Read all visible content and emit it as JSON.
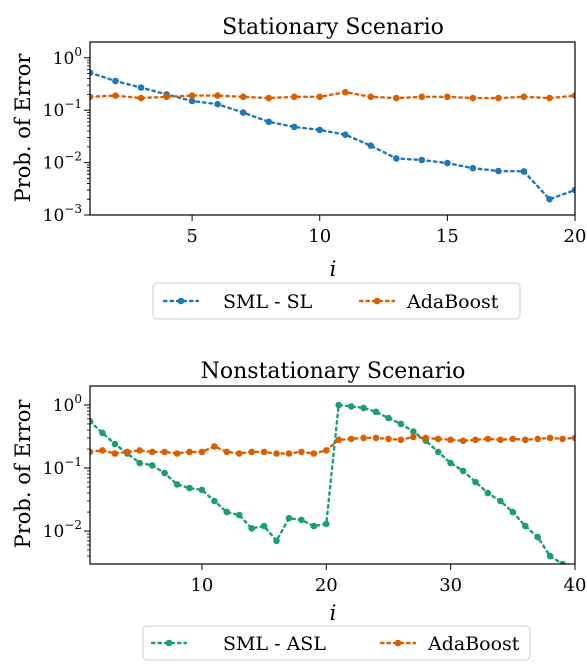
{
  "chart_data": [
    {
      "type": "line",
      "title": "Stationary Scenario",
      "xlabel": "i",
      "ylabel": "Prob. of Error",
      "xlim": [
        1,
        20
      ],
      "ylim": [
        0.001,
        2
      ],
      "yscale": "log",
      "grid": false,
      "legend_position": "bottom-center",
      "x_ticks": [
        "5",
        "10",
        "15",
        "20"
      ],
      "y_ticks": [
        "10^0",
        "10^-1",
        "10^-2",
        "10^-3"
      ],
      "series": [
        {
          "name": "SML - SL",
          "color": "#1f77b4",
          "x": [
            1,
            2,
            3,
            4,
            5,
            6,
            7,
            8,
            9,
            10,
            11,
            12,
            13,
            14,
            15,
            16,
            17,
            18,
            19,
            20
          ],
          "y": [
            0.52,
            0.36,
            0.27,
            0.2,
            0.15,
            0.13,
            0.09,
            0.06,
            0.048,
            0.042,
            0.034,
            0.021,
            0.012,
            0.0112,
            0.0098,
            0.0078,
            0.0069,
            0.0068,
            0.002,
            0.003
          ]
        },
        {
          "name": "AdaBoost",
          "color": "#d95f02",
          "x": [
            1,
            2,
            3,
            4,
            5,
            6,
            7,
            8,
            9,
            10,
            11,
            12,
            13,
            14,
            15,
            16,
            17,
            18,
            19,
            20
          ],
          "y": [
            0.18,
            0.19,
            0.17,
            0.18,
            0.19,
            0.19,
            0.18,
            0.17,
            0.18,
            0.18,
            0.22,
            0.18,
            0.17,
            0.18,
            0.18,
            0.17,
            0.17,
            0.18,
            0.17,
            0.19
          ]
        }
      ]
    },
    {
      "type": "line",
      "title": "Nonstationary Scenario",
      "xlabel": "i",
      "ylabel": "Prob. of Error",
      "xlim": [
        1,
        40
      ],
      "ylim": [
        0.003,
        2
      ],
      "yscale": "log",
      "grid": false,
      "legend_position": "bottom-center",
      "x_ticks": [
        "10",
        "20",
        "30",
        "40"
      ],
      "y_ticks": [
        "10^0",
        "10^-1",
        "10^-2"
      ],
      "series": [
        {
          "name": "SML - ASL",
          "color": "#1b9e77",
          "x": [
            1,
            2,
            3,
            4,
            5,
            6,
            7,
            8,
            9,
            10,
            11,
            12,
            13,
            14,
            15,
            16,
            17,
            18,
            19,
            20,
            21,
            22,
            23,
            24,
            25,
            26,
            27,
            28,
            29,
            30,
            31,
            32,
            33,
            34,
            35,
            36,
            37,
            38,
            39,
            40
          ],
          "y": [
            0.55,
            0.36,
            0.24,
            0.17,
            0.12,
            0.11,
            0.083,
            0.055,
            0.048,
            0.045,
            0.03,
            0.02,
            0.018,
            0.011,
            0.012,
            0.007,
            0.016,
            0.015,
            0.012,
            0.013,
            1.0,
            0.95,
            0.9,
            0.78,
            0.62,
            0.5,
            0.38,
            0.27,
            0.18,
            0.12,
            0.09,
            0.06,
            0.04,
            0.03,
            0.02,
            0.012,
            0.008,
            0.004,
            0.003,
            0.0025
          ]
        },
        {
          "name": "AdaBoost",
          "color": "#d95f02",
          "x": [
            1,
            2,
            3,
            4,
            5,
            6,
            7,
            8,
            9,
            10,
            11,
            12,
            13,
            14,
            15,
            16,
            17,
            18,
            19,
            20,
            21,
            22,
            23,
            24,
            25,
            26,
            27,
            28,
            29,
            30,
            31,
            32,
            33,
            34,
            35,
            36,
            37,
            38,
            39,
            40
          ],
          "y": [
            0.18,
            0.19,
            0.17,
            0.18,
            0.19,
            0.18,
            0.18,
            0.17,
            0.18,
            0.18,
            0.22,
            0.18,
            0.17,
            0.18,
            0.18,
            0.17,
            0.17,
            0.18,
            0.17,
            0.19,
            0.28,
            0.29,
            0.3,
            0.3,
            0.29,
            0.28,
            0.31,
            0.3,
            0.29,
            0.28,
            0.27,
            0.28,
            0.29,
            0.28,
            0.29,
            0.28,
            0.29,
            0.3,
            0.29,
            0.3
          ]
        }
      ]
    }
  ]
}
